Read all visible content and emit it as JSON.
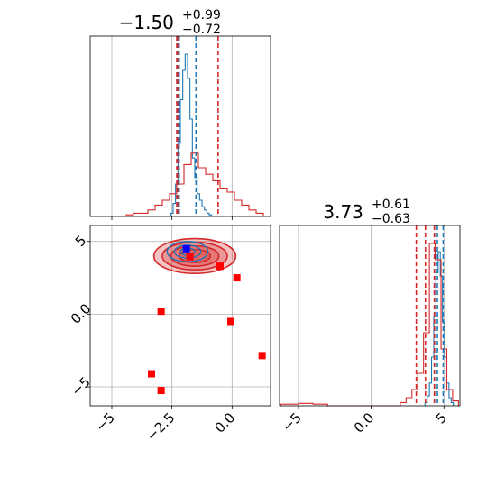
{
  "chart_data": [
    {
      "panel": "x-marginal",
      "type": "histogram",
      "title": {
        "value": "−1.50",
        "plus": "+0.99",
        "minus": "−0.72"
      },
      "xlim": [
        -5.9,
        1.6
      ],
      "xticks": [
        -5.0,
        -2.5,
        0.0
      ],
      "grid": true,
      "colors": {
        "blue": "#1f77b4",
        "red": "#d62728"
      },
      "series": [
        {
          "name": "",
          "color": "#1f77b4",
          "bin_edges": [
            -2.55,
            -2.45,
            -2.35,
            -2.25,
            -2.15,
            -2.05,
            -1.95,
            -1.85,
            -1.75,
            -1.65,
            -1.55,
            -1.45,
            -1.35,
            -1.25,
            -1.15,
            -1.05,
            -0.95,
            -0.85
          ],
          "counts": [
            0.02,
            0.08,
            0.2,
            0.45,
            0.72,
            0.9,
            1.0,
            0.85,
            0.6,
            0.36,
            0.24,
            0.14,
            0.1,
            0.06,
            0.04,
            0.02,
            0.01
          ]
        },
        {
          "name": "",
          "color": "#d62728",
          "bin_edges": [
            -4.4,
            -4.1,
            -3.8,
            -3.5,
            -3.2,
            -2.9,
            -2.6,
            -2.3,
            -2.0,
            -1.7,
            -1.4,
            -1.1,
            -0.8,
            -0.5,
            -0.2,
            0.1,
            0.4,
            0.7,
            1.0,
            1.3
          ],
          "counts": [
            0.01,
            0.02,
            0.02,
            0.04,
            0.07,
            0.1,
            0.14,
            0.2,
            0.32,
            0.39,
            0.3,
            0.26,
            0.22,
            0.17,
            0.15,
            0.1,
            0.07,
            0.04,
            0.02
          ]
        }
      ],
      "quantile_lines": [
        {
          "color": "#1f77b4",
          "x": [
            -2.25,
            -1.5,
            -2.2
          ]
        },
        {
          "color": "#d62728",
          "x": [
            -2.22,
            -0.58,
            -2.3
          ]
        }
      ]
    },
    {
      "panel": "joint",
      "type": "scatter",
      "xlim": [
        -5.9,
        1.6
      ],
      "ylim": [
        -6.3,
        6.1
      ],
      "xticks": [
        -5.0,
        -2.5,
        0.0
      ],
      "yticks": [
        -5,
        0,
        5
      ],
      "grid": true,
      "points": [
        {
          "color": "#0000ff",
          "x": -1.9,
          "y": 4.5
        },
        {
          "color": "#ff0000",
          "x": -1.75,
          "y": 3.95
        },
        {
          "color": "#ff0000",
          "x": -0.5,
          "y": 3.3
        },
        {
          "color": "#ff0000",
          "x": 0.2,
          "y": 2.5
        },
        {
          "color": "#ff0000",
          "x": -2.95,
          "y": 0.2
        },
        {
          "color": "#ff0000",
          "x": -0.05,
          "y": -0.5
        },
        {
          "color": "#ff0000",
          "x": 1.25,
          "y": -2.85
        },
        {
          "color": "#ff0000",
          "x": -3.35,
          "y": -4.1
        },
        {
          "color": "#ff0000",
          "x": -2.95,
          "y": -5.25
        }
      ],
      "contours": [
        {
          "color": "#d62728",
          "cx": -1.55,
          "cy": 4.0,
          "levels": [
            [
              1.7,
              1.2
            ],
            [
              1.35,
              0.95
            ],
            [
              1.0,
              0.7
            ],
            [
              0.65,
              0.45
            ]
          ]
        },
        {
          "color": "#1f77b4",
          "cx": -1.85,
          "cy": 4.3,
          "levels": [
            [
              0.85,
              0.7
            ],
            [
              0.55,
              0.45
            ],
            [
              0.3,
              0.25
            ]
          ]
        }
      ]
    },
    {
      "panel": "y-marginal",
      "type": "histogram",
      "title": {
        "value": "3.73",
        "plus": "+0.61",
        "minus": "−0.63"
      },
      "xlim": [
        -6.3,
        6.1
      ],
      "xticks": [
        -5,
        0,
        5
      ],
      "grid": true,
      "series": [
        {
          "name": "",
          "color": "#1f77b4",
          "bin_edges": [
            3.7,
            3.85,
            4.0,
            4.15,
            4.3,
            4.45,
            4.6,
            4.75,
            4.9,
            5.05,
            5.2,
            5.35,
            5.5,
            5.65
          ],
          "counts": [
            0.02,
            0.06,
            0.14,
            0.3,
            0.55,
            0.82,
            0.95,
            0.8,
            0.52,
            0.3,
            0.14,
            0.05,
            0.02
          ]
        },
        {
          "name": "",
          "color": "#d62728",
          "bin_edges": [
            -6.2,
            -5.0,
            -4.0,
            -3.0,
            2.0,
            2.4,
            2.8,
            3.2,
            3.6,
            4.0,
            4.4,
            4.8,
            5.2,
            5.6,
            6.0
          ],
          "counts": [
            0.01,
            0.015,
            0.01,
            0.0,
            0.02,
            0.05,
            0.1,
            0.2,
            0.45,
            1.0,
            0.9,
            0.35,
            0.1,
            0.03
          ]
        }
      ],
      "quantile_lines": [
        {
          "color": "#1f77b4",
          "x": [
            4.35,
            4.55,
            4.95
          ]
        },
        {
          "color": "#d62728",
          "x": [
            3.1,
            3.73,
            4.34
          ]
        }
      ]
    }
  ]
}
